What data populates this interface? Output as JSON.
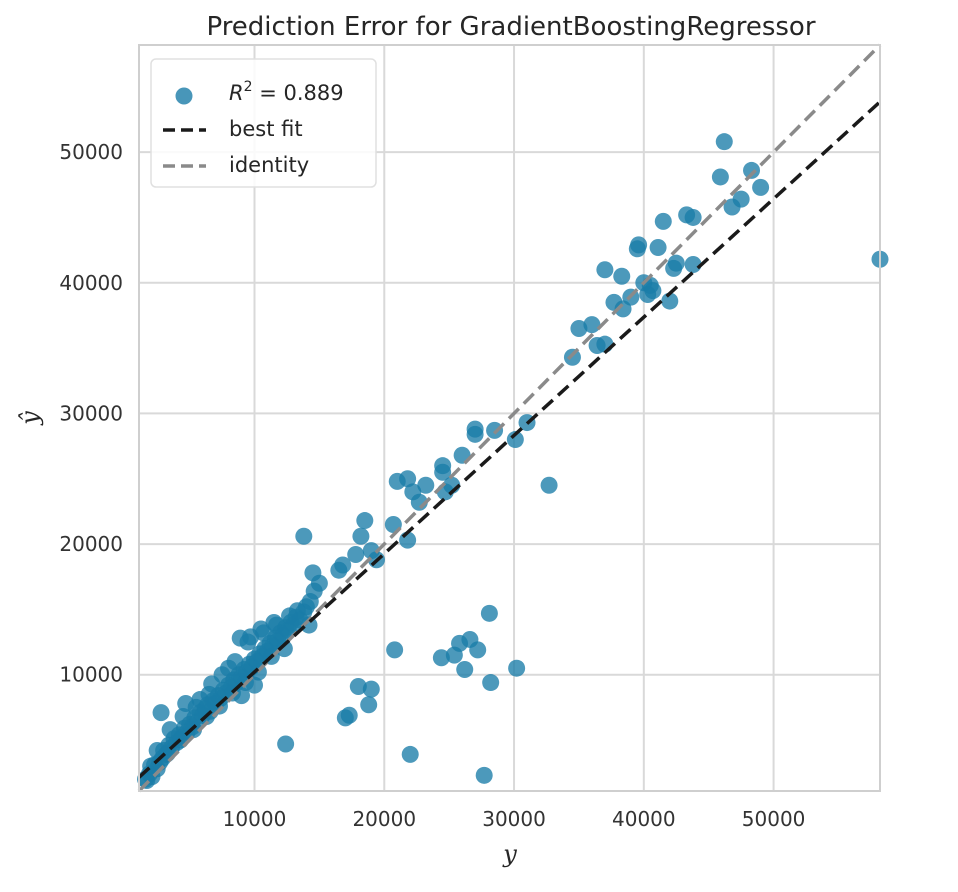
{
  "chart_data": {
    "type": "scatter",
    "title": "Prediction Error for GradientBoostingRegressor",
    "xlabel": "y",
    "ylabel": "ŷ",
    "xlim": [
      1100,
      58200
    ],
    "ylim": [
      1100,
      58200
    ],
    "xticks": [
      10000,
      20000,
      30000,
      40000,
      50000
    ],
    "yticks": [
      10000,
      20000,
      30000,
      40000,
      50000
    ],
    "grid": true,
    "legend_position": "top-left",
    "legend": [
      {
        "kind": "marker",
        "label_prefix": "R",
        "label_sup": "2",
        "label_suffix": " = 0.889"
      },
      {
        "kind": "line",
        "label": "best fit"
      },
      {
        "kind": "line",
        "label": "identity"
      }
    ],
    "colors": {
      "points": "#1a7ca8",
      "best_fit": "#1a1a1a",
      "identity": "#8a8a8a",
      "grid": "#d9d9d9",
      "frame": "#cfcfcf"
    },
    "best_fit": {
      "x0": 1100,
      "y0": 2150,
      "x1": 58200,
      "y1": 53850
    },
    "identity": {
      "x0": 1100,
      "y0": 1100,
      "x1": 58200,
      "y1": 58200
    },
    "points": [
      [
        1700,
        1900
      ],
      [
        1900,
        2400
      ],
      [
        2100,
        2200
      ],
      [
        2300,
        3100
      ],
      [
        2500,
        2800
      ],
      [
        2700,
        3300
      ],
      [
        2900,
        3600
      ],
      [
        3000,
        4200
      ],
      [
        3200,
        3900
      ],
      [
        3400,
        4600
      ],
      [
        3600,
        4400
      ],
      [
        3800,
        5100
      ],
      [
        4000,
        4800
      ],
      [
        4200,
        5400
      ],
      [
        4400,
        5200
      ],
      [
        4600,
        5900
      ],
      [
        4800,
        5600
      ],
      [
        5000,
        6200
      ],
      [
        5200,
        6000
      ],
      [
        5400,
        6700
      ],
      [
        5600,
        6400
      ],
      [
        5800,
        7100
      ],
      [
        6000,
        6900
      ],
      [
        6200,
        7400
      ],
      [
        6400,
        7700
      ],
      [
        6600,
        7200
      ],
      [
        6800,
        8000
      ],
      [
        7000,
        7800
      ],
      [
        7200,
        8400
      ],
      [
        7400,
        8200
      ],
      [
        7600,
        8800
      ],
      [
        7800,
        8600
      ],
      [
        8000,
        9200
      ],
      [
        8200,
        9000
      ],
      [
        8400,
        9600
      ],
      [
        8600,
        9400
      ],
      [
        8800,
        10000
      ],
      [
        9000,
        9800
      ],
      [
        9200,
        10400
      ],
      [
        9400,
        10200
      ],
      [
        9600,
        10800
      ],
      [
        9800,
        10600
      ],
      [
        10000,
        11200
      ],
      [
        10200,
        11000
      ],
      [
        10400,
        11600
      ],
      [
        10600,
        11400
      ],
      [
        10800,
        12000
      ],
      [
        11000,
        11800
      ],
      [
        11200,
        12400
      ],
      [
        11400,
        12200
      ],
      [
        11600,
        12800
      ],
      [
        11800,
        12600
      ],
      [
        12000,
        13200
      ],
      [
        12200,
        13000
      ],
      [
        12400,
        13600
      ],
      [
        12600,
        13400
      ],
      [
        12800,
        14000
      ],
      [
        13000,
        13800
      ],
      [
        13200,
        14400
      ],
      [
        13500,
        14200
      ],
      [
        13800,
        14800
      ],
      [
        14000,
        15200
      ],
      [
        14300,
        15600
      ],
      [
        14600,
        16400
      ],
      [
        15000,
        17000
      ],
      [
        9500,
        12500
      ],
      [
        10500,
        13500
      ],
      [
        11500,
        14000
      ],
      [
        8500,
        11000
      ],
      [
        7500,
        10000
      ],
      [
        6500,
        8500
      ],
      [
        5500,
        7500
      ],
      [
        4500,
        6800
      ],
      [
        3500,
        5800
      ],
      [
        2500,
        4200
      ],
      [
        2000,
        3000
      ],
      [
        1600,
        2000
      ],
      [
        3300,
        4000
      ],
      [
        4300,
        5000
      ],
      [
        5300,
        5800
      ],
      [
        6300,
        6800
      ],
      [
        7300,
        7600
      ],
      [
        8300,
        8600
      ],
      [
        9300,
        9400
      ],
      [
        10300,
        10200
      ],
      [
        11300,
        11400
      ],
      [
        12300,
        12000
      ],
      [
        9000,
        8400
      ],
      [
        10000,
        9200
      ],
      [
        8000,
        10500
      ],
      [
        9700,
        12900
      ],
      [
        10700,
        13200
      ],
      [
        11700,
        13800
      ],
      [
        12700,
        14500
      ],
      [
        13300,
        14900
      ],
      [
        14200,
        13800
      ],
      [
        2800,
        7100
      ],
      [
        4700,
        7800
      ],
      [
        5800,
        8100
      ],
      [
        6700,
        9300
      ],
      [
        8900,
        12800
      ],
      [
        14500,
        17800
      ],
      [
        16500,
        18000
      ],
      [
        17800,
        19200
      ],
      [
        18500,
        21800
      ],
      [
        19000,
        19500
      ],
      [
        19400,
        18800
      ],
      [
        18200,
        20600
      ],
      [
        13800,
        20600
      ],
      [
        16800,
        18400
      ],
      [
        20700,
        21500
      ],
      [
        21000,
        24800
      ],
      [
        21800,
        25000
      ],
      [
        21800,
        20300
      ],
      [
        22200,
        24000
      ],
      [
        22700,
        23200
      ],
      [
        23200,
        24500
      ],
      [
        24500,
        25500
      ],
      [
        24700,
        24000
      ],
      [
        25200,
        24500
      ],
      [
        24500,
        26000
      ],
      [
        26000,
        26800
      ],
      [
        27000,
        28400
      ],
      [
        27000,
        28800
      ],
      [
        28500,
        28700
      ],
      [
        30100,
        28000
      ],
      [
        31000,
        29300
      ],
      [
        32700,
        24500
      ],
      [
        34500,
        34300
      ],
      [
        35000,
        36500
      ],
      [
        36000,
        36800
      ],
      [
        36400,
        35200
      ],
      [
        37000,
        35300
      ],
      [
        37000,
        41000
      ],
      [
        37700,
        38500
      ],
      [
        38400,
        38000
      ],
      [
        38300,
        40500
      ],
      [
        39000,
        38900
      ],
      [
        39500,
        42600
      ],
      [
        39600,
        42900
      ],
      [
        40000,
        40000
      ],
      [
        40300,
        39100
      ],
      [
        40500,
        39800
      ],
      [
        40700,
        39400
      ],
      [
        41100,
        42700
      ],
      [
        41500,
        44700
      ],
      [
        42000,
        38600
      ],
      [
        42300,
        41100
      ],
      [
        42500,
        41500
      ],
      [
        43300,
        45200
      ],
      [
        43800,
        41400
      ],
      [
        43800,
        45000
      ],
      [
        45900,
        48100
      ],
      [
        46200,
        50800
      ],
      [
        46800,
        45800
      ],
      [
        47500,
        46400
      ],
      [
        48300,
        48600
      ],
      [
        49000,
        47300
      ],
      [
        58200,
        41800
      ],
      [
        20800,
        11900
      ],
      [
        22000,
        3900
      ],
      [
        24400,
        11300
      ],
      [
        25400,
        11500
      ],
      [
        25800,
        12400
      ],
      [
        26200,
        10400
      ],
      [
        26600,
        12700
      ],
      [
        27200,
        11900
      ],
      [
        27700,
        2300
      ],
      [
        28100,
        14700
      ],
      [
        28200,
        9400
      ],
      [
        30200,
        10500
      ],
      [
        18000,
        9100
      ],
      [
        19000,
        8900
      ],
      [
        18800,
        7700
      ],
      [
        17000,
        6700
      ],
      [
        17300,
        6900
      ],
      [
        12400,
        4700
      ]
    ]
  }
}
